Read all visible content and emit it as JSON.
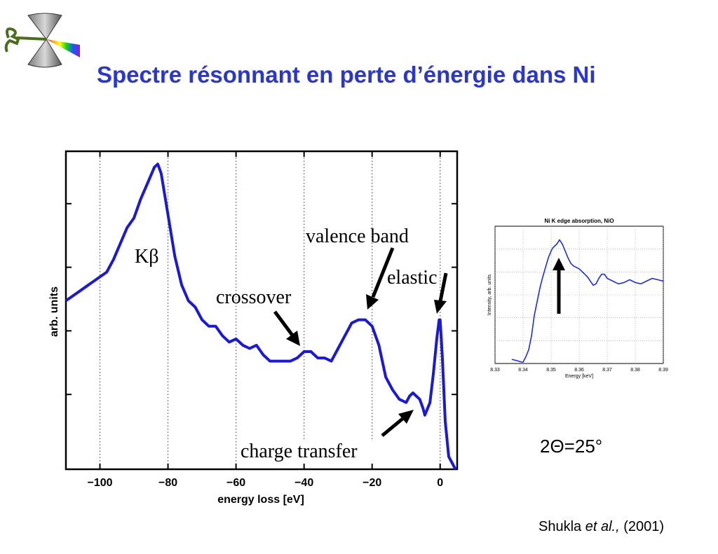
{
  "slide": {
    "title": "Spectre résonnant en perte d’énergie dans Ni",
    "theta_label": "2Θ=25°",
    "citation_author": "Shukla ",
    "citation_etal": "et al.,",
    "citation_year": " (2001)"
  },
  "colors": {
    "title": "#2a37c9",
    "curve": "#1a1ad6",
    "inset_curve": "#1a2ee0"
  },
  "chart_data": [
    {
      "type": "line",
      "title": "",
      "xlabel": "energy loss [eV]",
      "ylabel": "arb. units",
      "xlim": [
        -110,
        5
      ],
      "ylim": [
        0,
        1
      ],
      "xticks": [
        -100,
        -80,
        -60,
        -40,
        -20,
        0
      ],
      "xtick_labels": [
        "−100",
        "−80",
        "−60",
        "−40",
        "−20",
        "0"
      ],
      "grid": "vertical dotted",
      "series": [
        {
          "x": [
            -110,
            -106,
            -102,
            -98,
            -96,
            -94,
            -92,
            -90,
            -88,
            -86,
            -84,
            -83,
            -82,
            -80,
            -78,
            -76,
            -74,
            -72,
            -70,
            -68,
            -66,
            -64,
            -62,
            -60,
            -58,
            -56,
            -54,
            -52,
            -50,
            -48,
            -46,
            -44,
            -42,
            -40,
            -38,
            -36,
            -34,
            -32,
            -30,
            -28,
            -26,
            -24,
            -22,
            -20,
            -18,
            -16,
            -14,
            -12,
            -10,
            -9,
            -8,
            -6,
            -5,
            -4.5,
            -3,
            -2,
            -1,
            -0.3,
            0,
            0.6,
            1.5,
            2.5,
            4.5
          ],
          "y": [
            0.53,
            0.56,
            0.59,
            0.62,
            0.66,
            0.71,
            0.76,
            0.79,
            0.85,
            0.9,
            0.95,
            0.96,
            0.93,
            0.8,
            0.67,
            0.58,
            0.53,
            0.51,
            0.47,
            0.45,
            0.45,
            0.42,
            0.4,
            0.41,
            0.39,
            0.38,
            0.39,
            0.36,
            0.34,
            0.34,
            0.34,
            0.34,
            0.35,
            0.37,
            0.37,
            0.35,
            0.35,
            0.34,
            0.38,
            0.42,
            0.46,
            0.47,
            0.47,
            0.45,
            0.39,
            0.29,
            0.25,
            0.22,
            0.21,
            0.23,
            0.24,
            0.22,
            0.19,
            0.17,
            0.21,
            0.3,
            0.41,
            0.47,
            0.47,
            0.36,
            0.15,
            0.04,
            0.0
          ]
        }
      ],
      "annotations": [
        "Kβ",
        "valence band",
        "elastic",
        "crossover",
        "charge transfer"
      ]
    },
    {
      "type": "line",
      "title": "Ni K edge absorption, NiO",
      "xlabel": "Energy [keV]",
      "ylabel": "Intensity, arb. units",
      "xlim": [
        8.33,
        8.39
      ],
      "xticks": [
        8.33,
        8.34,
        8.35,
        8.36,
        8.37,
        8.38,
        8.39
      ],
      "xtick_labels": [
        "8.33",
        "8.34",
        "8.35",
        "8.36",
        "8.37",
        "8.38",
        "8.39"
      ],
      "grid": "on",
      "series": [
        {
          "x": [
            8.336,
            8.338,
            8.3395,
            8.34,
            8.341,
            8.342,
            8.343,
            8.344,
            8.345,
            8.346,
            8.347,
            8.348,
            8.349,
            8.35,
            8.3505,
            8.351,
            8.352,
            8.353,
            8.354,
            8.355,
            8.356,
            8.357,
            8.358,
            8.359,
            8.36,
            8.361,
            8.362,
            8.363,
            8.364,
            8.365,
            8.366,
            8.367,
            8.368,
            8.369,
            8.37,
            8.372,
            8.374,
            8.376,
            8.378,
            8.38,
            8.382,
            8.384,
            8.386,
            8.388,
            8.39
          ],
          "y": [
            0.03,
            0.02,
            0.01,
            0.01,
            0.05,
            0.1,
            0.2,
            0.35,
            0.45,
            0.55,
            0.63,
            0.7,
            0.77,
            0.82,
            0.84,
            0.85,
            0.87,
            0.9,
            0.87,
            0.82,
            0.77,
            0.73,
            0.71,
            0.7,
            0.69,
            0.67,
            0.65,
            0.63,
            0.6,
            0.57,
            0.58,
            0.62,
            0.65,
            0.65,
            0.62,
            0.6,
            0.58,
            0.59,
            0.61,
            0.59,
            0.58,
            0.6,
            0.62,
            0.61,
            0.6
          ]
        }
      ]
    }
  ]
}
